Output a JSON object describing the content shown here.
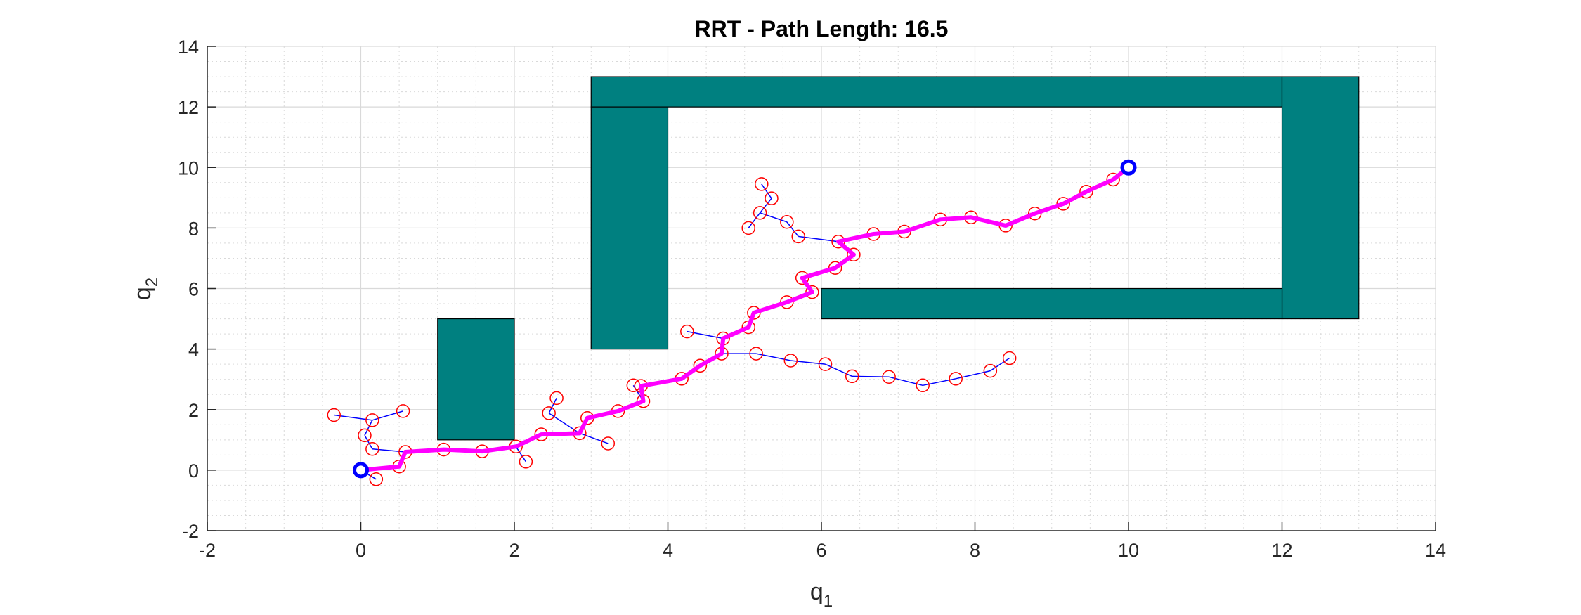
{
  "chart_data": {
    "type": "scatter",
    "title": "RRT - Path Length: 16.5",
    "xlabel": {
      "base": "q",
      "sub": "1"
    },
    "ylabel": {
      "base": "q",
      "sub": "2"
    },
    "xlim": [
      -2,
      14
    ],
    "ylim": [
      -2,
      14
    ],
    "xticks": [
      -2,
      0,
      2,
      4,
      6,
      8,
      10,
      12,
      14
    ],
    "yticks": [
      -2,
      0,
      2,
      4,
      6,
      8,
      10,
      12,
      14
    ],
    "grid": true,
    "minor_grid": true,
    "colors": {
      "obstacle": "#008080",
      "tree_edge": "#0000ff",
      "node": "#ff0000",
      "path": "#ff00ff",
      "endpoint": "#0000ff",
      "grid": "#d9d9d9",
      "axis": "#262626"
    },
    "obstacles": [
      {
        "x": 1,
        "y": 1,
        "w": 1,
        "h": 4
      },
      {
        "x": 3,
        "y": 12,
        "w": 9,
        "h": 1
      },
      {
        "x": 3,
        "y": 4,
        "w": 1,
        "h": 8
      },
      {
        "x": 12,
        "y": 5,
        "w": 1,
        "h": 8
      },
      {
        "x": 6,
        "y": 5,
        "w": 6,
        "h": 1
      }
    ],
    "tree_nodes": [
      [
        0,
        0
      ],
      [
        0.5,
        0.12
      ],
      [
        0.58,
        0.6
      ],
      [
        1.08,
        0.68
      ],
      [
        1.58,
        0.62
      ],
      [
        2.02,
        0.78
      ],
      [
        2.35,
        1.18
      ],
      [
        2.85,
        1.22
      ],
      [
        2.95,
        1.72
      ],
      [
        3.35,
        1.95
      ],
      [
        3.68,
        2.28
      ],
      [
        3.65,
        2.78
      ],
      [
        4.18,
        3.02
      ],
      [
        4.42,
        3.45
      ],
      [
        4.7,
        3.85
      ],
      [
        4.72,
        4.35
      ],
      [
        5.05,
        4.72
      ],
      [
        5.12,
        5.2
      ],
      [
        5.55,
        5.55
      ],
      [
        5.88,
        5.88
      ],
      [
        5.75,
        6.35
      ],
      [
        6.18,
        6.68
      ],
      [
        6.42,
        7.12
      ],
      [
        6.22,
        7.55
      ],
      [
        6.68,
        7.8
      ],
      [
        7.08,
        7.88
      ],
      [
        7.55,
        8.28
      ],
      [
        7.95,
        8.35
      ],
      [
        8.4,
        8.08
      ],
      [
        8.78,
        8.48
      ],
      [
        9.15,
        8.8
      ],
      [
        9.45,
        9.2
      ],
      [
        9.8,
        9.6
      ],
      [
        10,
        10
      ],
      [
        0.2,
        -0.3
      ],
      [
        0.15,
        0.7
      ],
      [
        0.05,
        1.15
      ],
      [
        0.15,
        1.65
      ],
      [
        -0.35,
        1.82
      ],
      [
        0.55,
        1.95
      ],
      [
        2.15,
        0.28
      ],
      [
        3.22,
        0.88
      ],
      [
        2.45,
        1.88
      ],
      [
        2.55,
        2.38
      ],
      [
        3.55,
        2.8
      ],
      [
        4.25,
        4.58
      ],
      [
        5.15,
        3.85
      ],
      [
        5.6,
        3.62
      ],
      [
        6.05,
        3.5
      ],
      [
        6.4,
        3.1
      ],
      [
        6.88,
        3.08
      ],
      [
        7.32,
        2.8
      ],
      [
        7.75,
        3.02
      ],
      [
        8.2,
        3.28
      ],
      [
        8.45,
        3.7
      ],
      [
        5.7,
        7.72
      ],
      [
        5.55,
        8.2
      ],
      [
        5.2,
        8.5
      ],
      [
        5.05,
        8.0
      ],
      [
        5.35,
        8.98
      ],
      [
        5.22,
        9.45
      ]
    ],
    "tree_edges": [
      [
        0,
        34
      ],
      [
        1,
        2
      ],
      [
        2,
        35
      ],
      [
        35,
        36
      ],
      [
        36,
        37
      ],
      [
        37,
        38
      ],
      [
        37,
        39
      ],
      [
        5,
        40
      ],
      [
        41,
        7
      ],
      [
        7,
        42
      ],
      [
        42,
        43
      ],
      [
        10,
        44
      ],
      [
        15,
        45
      ],
      [
        14,
        46
      ],
      [
        46,
        47
      ],
      [
        47,
        48
      ],
      [
        48,
        49
      ],
      [
        49,
        50
      ],
      [
        50,
        51
      ],
      [
        51,
        52
      ],
      [
        52,
        53
      ],
      [
        53,
        54
      ],
      [
        23,
        55
      ],
      [
        55,
        56
      ],
      [
        56,
        57
      ],
      [
        57,
        58
      ],
      [
        57,
        59
      ],
      [
        59,
        60
      ]
    ],
    "path": [
      [
        0,
        0
      ],
      [
        0.5,
        0.12
      ],
      [
        0.58,
        0.6
      ],
      [
        1.08,
        0.68
      ],
      [
        1.58,
        0.62
      ],
      [
        2.02,
        0.78
      ],
      [
        2.35,
        1.18
      ],
      [
        2.85,
        1.22
      ],
      [
        2.95,
        1.72
      ],
      [
        3.35,
        1.95
      ],
      [
        3.68,
        2.28
      ],
      [
        3.65,
        2.78
      ],
      [
        4.18,
        3.02
      ],
      [
        4.42,
        3.45
      ],
      [
        4.7,
        3.85
      ],
      [
        4.72,
        4.35
      ],
      [
        5.05,
        4.72
      ],
      [
        5.12,
        5.2
      ],
      [
        5.55,
        5.55
      ],
      [
        5.88,
        5.88
      ],
      [
        5.75,
        6.35
      ],
      [
        6.18,
        6.68
      ],
      [
        6.42,
        7.12
      ],
      [
        6.22,
        7.55
      ],
      [
        6.68,
        7.8
      ],
      [
        7.08,
        7.88
      ],
      [
        7.55,
        8.28
      ],
      [
        7.95,
        8.35
      ],
      [
        8.4,
        8.08
      ],
      [
        8.78,
        8.48
      ],
      [
        9.15,
        8.8
      ],
      [
        9.45,
        9.2
      ],
      [
        9.8,
        9.6
      ],
      [
        10,
        10
      ]
    ],
    "start": [
      0,
      0
    ],
    "goal": [
      10,
      10
    ]
  }
}
